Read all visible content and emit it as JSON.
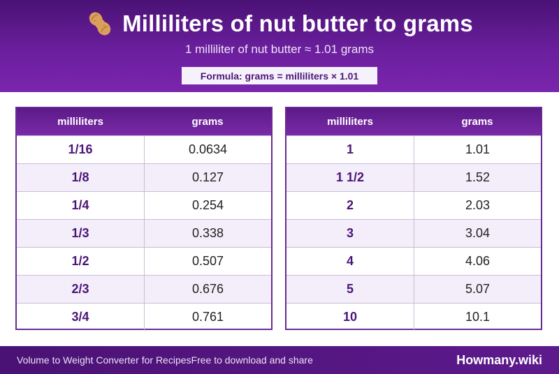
{
  "header": {
    "title": "Milliliters of nut butter to grams",
    "icon": "peanut-icon",
    "subtitle": "1 milliliter of nut butter ≈ 1.01 grams",
    "formula": "Formula: grams = milliliters × 1.01"
  },
  "tables": [
    {
      "col_ml": "milliliters",
      "col_g": "grams",
      "rows": [
        {
          "ml": "1/16",
          "g": "0.0634"
        },
        {
          "ml": "1/8",
          "g": "0.127"
        },
        {
          "ml": "1/4",
          "g": "0.254"
        },
        {
          "ml": "1/3",
          "g": "0.338"
        },
        {
          "ml": "1/2",
          "g": "0.507"
        },
        {
          "ml": "2/3",
          "g": "0.676"
        },
        {
          "ml": "3/4",
          "g": "0.761"
        }
      ]
    },
    {
      "col_ml": "milliliters",
      "col_g": "grams",
      "rows": [
        {
          "ml": "1",
          "g": "1.01"
        },
        {
          "ml": "1 1/2",
          "g": "1.52"
        },
        {
          "ml": "2",
          "g": "2.03"
        },
        {
          "ml": "3",
          "g": "3.04"
        },
        {
          "ml": "4",
          "g": "4.06"
        },
        {
          "ml": "5",
          "g": "5.07"
        },
        {
          "ml": "10",
          "g": "10.1"
        }
      ]
    }
  ],
  "footer": {
    "left": "Volume to Weight Converter for Recipes",
    "middle": "Free to download and share",
    "brand": "Howmany.wiki"
  },
  "colors": {
    "brand_purple": "#5c1a88",
    "accent_text": "#4b1577"
  }
}
